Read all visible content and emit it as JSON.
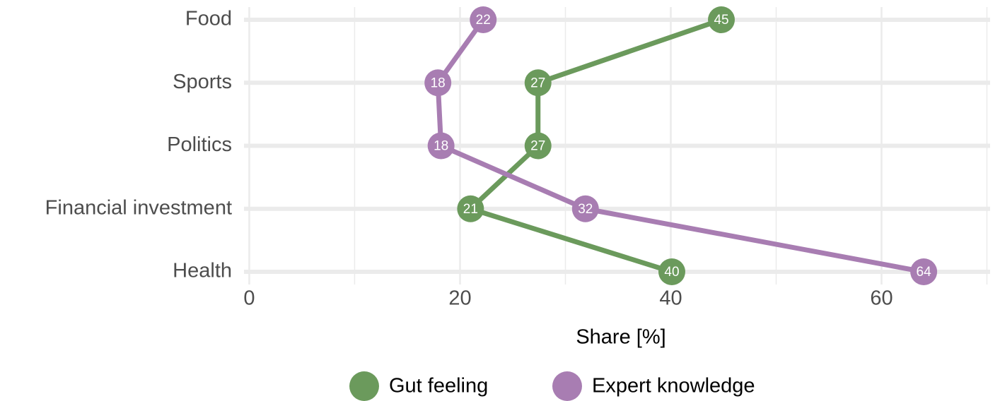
{
  "chart_data": {
    "type": "dot-line",
    "x_label": "Share [%]",
    "categories": [
      "Food",
      "Sports",
      "Politics",
      "Financial investment",
      "Health"
    ],
    "series": [
      {
        "name": "Gut feeling",
        "color": "#6b9a5c",
        "values": [
          44.8,
          27.4,
          27.4,
          21.0,
          40.1
        ],
        "value_labels": [
          "45",
          "27",
          "27",
          "21",
          "40"
        ]
      },
      {
        "name": "Expert knowledge",
        "color": "#a87db2",
        "values": [
          22.2,
          17.9,
          18.2,
          31.9,
          64.0
        ],
        "value_labels": [
          "22",
          "18",
          "18",
          "32",
          "64"
        ]
      }
    ],
    "xlim": [
      -0.5,
      70.3
    ],
    "xticks": [
      0,
      20,
      40,
      60
    ],
    "xminorticks": [
      10,
      30,
      50,
      70
    ],
    "grid": true,
    "legend": "bottom"
  }
}
